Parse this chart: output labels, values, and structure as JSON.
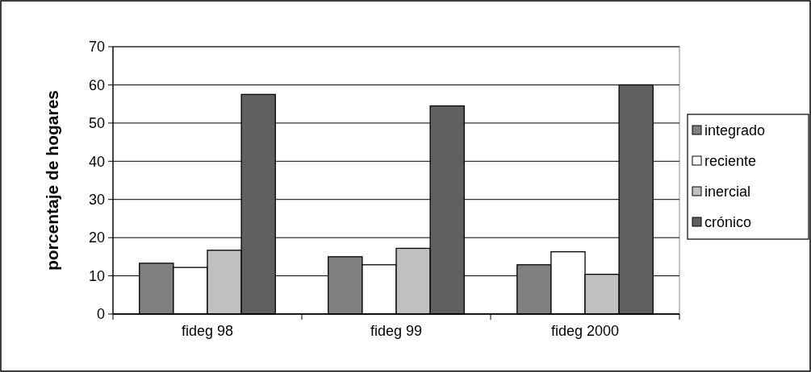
{
  "chart_data": {
    "type": "bar",
    "ylabel": "porcentaje de hogares",
    "categories": [
      "fideg 98",
      "fideg 99",
      "fideg 2000"
    ],
    "series": [
      {
        "name": "integrado",
        "color": "#808080",
        "values": [
          13.3,
          15,
          12.9
        ]
      },
      {
        "name": "reciente",
        "color": "#ffffff",
        "values": [
          12.2,
          12.9,
          16.3
        ]
      },
      {
        "name": "inercial",
        "color": "#c0c0c0",
        "values": [
          16.7,
          17.2,
          10.4
        ]
      },
      {
        "name": "crónico",
        "color": "#606060",
        "values": [
          57.5,
          54.5,
          60
        ]
      }
    ],
    "ylim": [
      0,
      70
    ],
    "yticks": [
      0,
      10,
      20,
      30,
      40,
      50,
      60,
      70
    ],
    "grid": "y",
    "legend": "right"
  }
}
